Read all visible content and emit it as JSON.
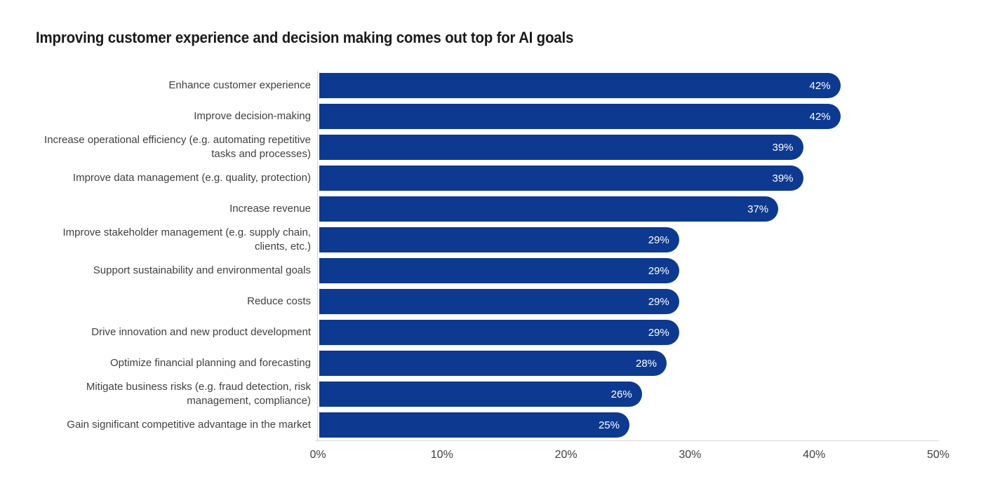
{
  "page": {
    "background": "#ffffff"
  },
  "colors": {
    "title_text": "#1a1a1a",
    "category_label_text": "#404040",
    "tick_label_text": "#404040",
    "axis_line": "#d9d9d9"
  },
  "chart_data": {
    "type": "bar",
    "orientation": "horizontal",
    "title": "Improving customer experience and decision making comes out top for AI goals",
    "categories": [
      "Enhance customer experience",
      "Improve decision-making",
      "Increase operational efficiency (e.g. automating repetitive tasks and processes)",
      "Improve data management (e.g. quality, protection)",
      "Increase revenue",
      "Improve stakeholder management (e.g. supply chain, clients, etc.)",
      "Support sustainability and environmental goals",
      "Reduce costs",
      "Drive innovation and new product development",
      "Optimize financial planning and forecasting",
      "Mitigate business risks (e.g. fraud detection, risk management, compliance)",
      "Gain significant competitive advantage in the market"
    ],
    "values": [
      42,
      42,
      39,
      39,
      37,
      29,
      29,
      29,
      29,
      28,
      26,
      25
    ],
    "value_labels": [
      "42%",
      "42%",
      "39%",
      "39%",
      "37%",
      "29%",
      "29%",
      "29%",
      "29%",
      "28%",
      "26%",
      "25%"
    ],
    "value_suffix": "%",
    "xlabel": "",
    "ylabel": "",
    "xlim": [
      0,
      50
    ],
    "x_ticks": [
      "0%",
      "10%",
      "20%",
      "30%",
      "40%",
      "50%"
    ],
    "bar_color": "#0d3a90",
    "value_label_color": "#ffffff",
    "grid": false,
    "legend": "none",
    "data_labels_inside_bar_right": true
  }
}
